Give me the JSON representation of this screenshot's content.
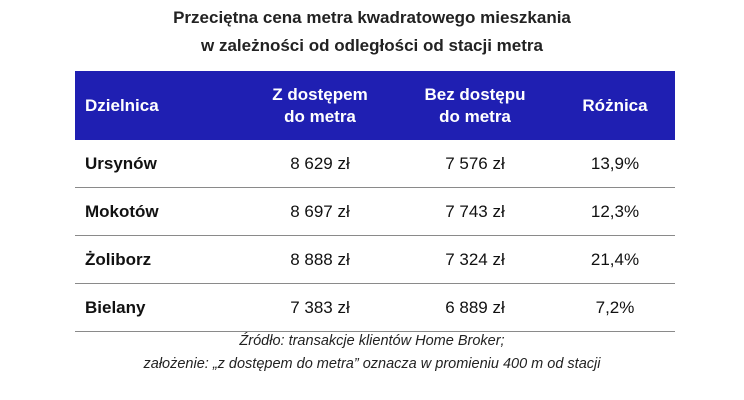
{
  "title": {
    "line1": "Przeciętna cena metra kwadratowego mieszkania",
    "line2": "w zależności od odległości od stacji metra"
  },
  "chart_data": {
    "type": "table",
    "columns": [
      [
        "Dzielnica"
      ],
      [
        "Z dostępem",
        "do metra"
      ],
      [
        "Bez dostępu",
        "do metra"
      ],
      [
        "Różnica"
      ]
    ],
    "rows": [
      [
        "Ursynów",
        "8 629 zł",
        "7 576 zł",
        "13,9%"
      ],
      [
        "Mokotów",
        "8 697 zł",
        "7 743 zł",
        "12,3%"
      ],
      [
        "Żoliborz",
        "8 888 zł",
        "7 324 zł",
        "21,4%"
      ],
      [
        "Bielany",
        "7 383 zł",
        "6 889 zł",
        "7,2%"
      ]
    ]
  },
  "colors": {
    "header_bg": "#1f1fb2",
    "header_text": "#ffffff"
  },
  "source": {
    "line1": "Źródło: transakcje klientów Home Broker;",
    "line2": "założenie: „z dostępem do metra” oznacza w promieniu 400 m od stacji"
  }
}
